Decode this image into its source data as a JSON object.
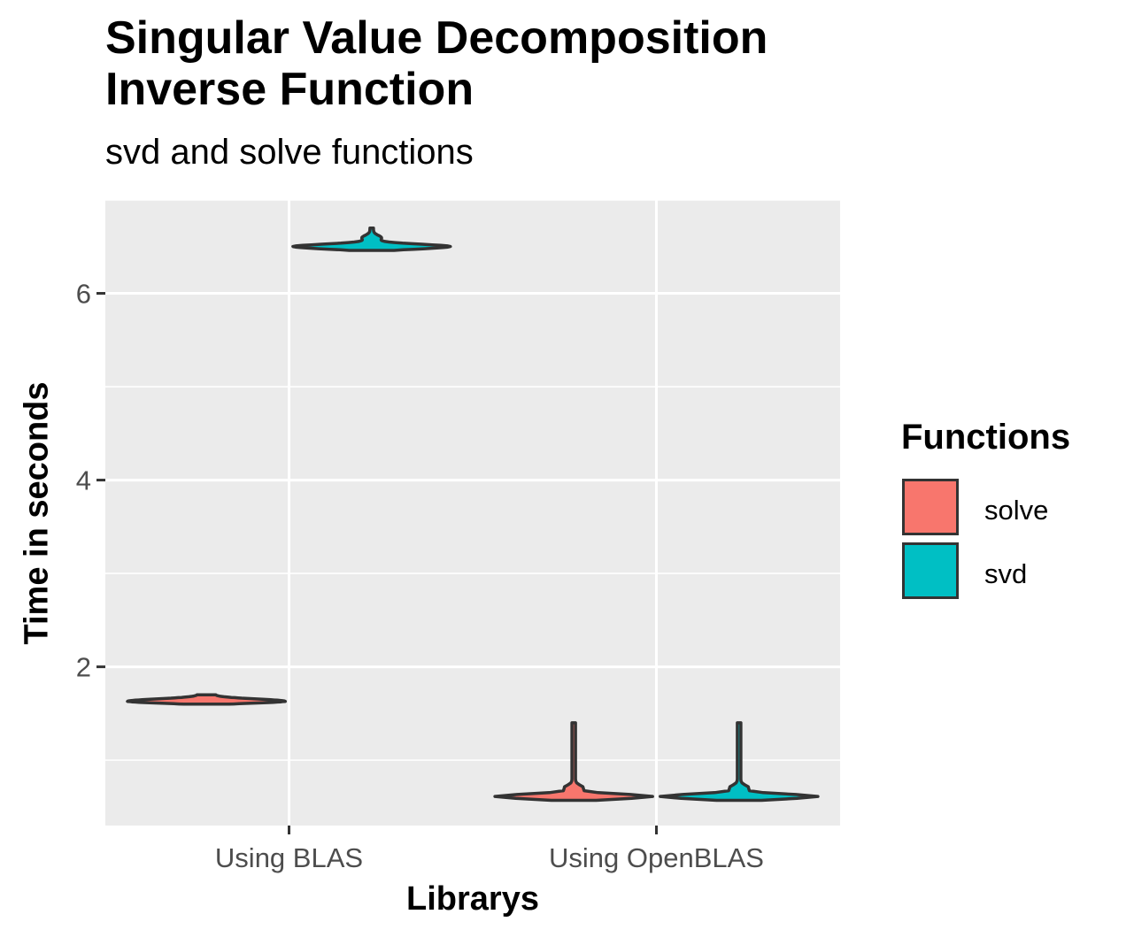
{
  "chart_data": {
    "type": "violin",
    "title": "Singular Value Decomposition\nInverse Function",
    "subtitle": "svd and solve functions",
    "xlabel": "Librarys",
    "ylabel": "Time in seconds",
    "categories": [
      "Using BLAS",
      "Using OpenBLAS"
    ],
    "yticks": [
      2,
      4,
      6
    ],
    "ylim": [
      0.3,
      7.0
    ],
    "grid": true,
    "legend": {
      "title": "Functions",
      "placement": "right",
      "entries": [
        {
          "name": "solve",
          "color": "#F8766D"
        },
        {
          "name": "svd",
          "color": "#00BFC4"
        }
      ]
    },
    "series": [
      {
        "name": "solve",
        "color": "#F8766D",
        "stats": [
          {
            "category": "Using BLAS",
            "median": 1.63,
            "min": 1.6,
            "max": 1.7
          },
          {
            "category": "Using OpenBLAS",
            "median": 0.61,
            "min": 0.57,
            "max": 1.4
          }
        ]
      },
      {
        "name": "svd",
        "color": "#00BFC4",
        "stats": [
          {
            "category": "Using BLAS",
            "median": 6.5,
            "min": 6.46,
            "max": 6.7
          },
          {
            "category": "Using OpenBLAS",
            "median": 0.61,
            "min": 0.57,
            "max": 1.4
          }
        ]
      }
    ]
  }
}
